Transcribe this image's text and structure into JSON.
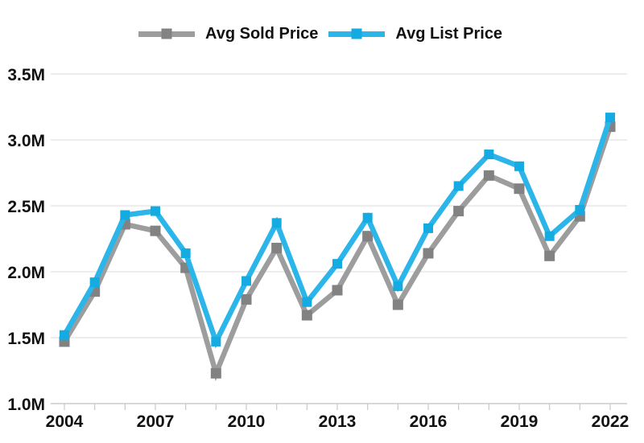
{
  "page": {
    "background": "#ffffff"
  },
  "legend": {
    "items": [
      {
        "label": "Avg Sold Price",
        "line_color": "#9d9d9d",
        "marker_color": "#828282"
      },
      {
        "label": "Avg List Price",
        "line_color": "#2bb5e9",
        "marker_color": "#14abe2"
      }
    ]
  },
  "chart_data": {
    "type": "line",
    "title": "",
    "x": [
      2004,
      2005,
      2006,
      2007,
      2008,
      2009,
      2010,
      2011,
      2012,
      2013,
      2014,
      2015,
      2016,
      2017,
      2018,
      2019,
      2020,
      2021,
      2022
    ],
    "series": [
      {
        "name": "Avg Sold Price",
        "line_color": "#9d9d9d",
        "marker_color": "#828282",
        "values": [
          1.47,
          1.85,
          2.36,
          2.31,
          2.03,
          1.23,
          1.79,
          2.18,
          1.67,
          1.86,
          2.27,
          1.75,
          2.14,
          2.46,
          2.73,
          2.63,
          2.12,
          2.42,
          3.1
        ]
      },
      {
        "name": "Avg List Price",
        "line_color": "#2bb5e9",
        "marker_color": "#14abe2",
        "values": [
          1.52,
          1.92,
          2.43,
          2.46,
          2.14,
          1.47,
          1.93,
          2.37,
          1.77,
          2.06,
          2.41,
          1.89,
          2.33,
          2.65,
          2.89,
          2.8,
          2.27,
          2.47,
          3.17
        ]
      }
    ],
    "unit": "M",
    "ylim": [
      1.0,
      3.5
    ],
    "yticks": [
      {
        "value": 1.0,
        "label": "1.0M"
      },
      {
        "value": 1.5,
        "label": "1.5M"
      },
      {
        "value": 2.0,
        "label": "2.0M"
      },
      {
        "value": 2.5,
        "label": "2.5M"
      },
      {
        "value": 3.0,
        "label": "3.0M"
      },
      {
        "value": 3.5,
        "label": "3.5M"
      }
    ],
    "xticks_labeled": [
      2004,
      2007,
      2010,
      2013,
      2016,
      2019,
      2022
    ],
    "grid": "horizontal",
    "legend_position": "top",
    "grid_color": "#e2e2e2",
    "axis_color": "#cccccc",
    "label_color": "#111111"
  }
}
